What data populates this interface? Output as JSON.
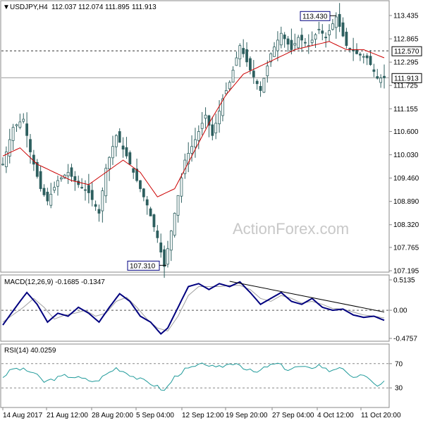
{
  "chart_data": {
    "type": "candlestick",
    "symbol_header": "USDJPY,H4",
    "ohlc_header": [
      "112.037",
      "112.074",
      "111.895",
      "111.913"
    ],
    "watermark": "ActionForex.com",
    "price_axis": {
      "ticks": [
        "113.435",
        "112.865",
        "112.295",
        "111.725",
        "111.155",
        "110.600",
        "110.030",
        "109.460",
        "108.890",
        "108.320",
        "107.765",
        "107.195"
      ],
      "ylim": [
        107.195,
        113.435
      ]
    },
    "x_labels": [
      "14 Aug 2017",
      "21 Aug 12:00",
      "28 Aug 20:00",
      "5 Sep 04:00",
      "12 Sep 12:00",
      "19 Sep 20:00",
      "27 Sep 04:00",
      "4 Oct 12:00",
      "11 Oct 20:00"
    ],
    "annotations": {
      "high_label": "113.430",
      "low_label": "107.310",
      "resistance_label": "112.570",
      "last_price_label": "111.913"
    },
    "price_path": [
      [
        0,
        109.8
      ],
      [
        3,
        110.7
      ],
      [
        6,
        110.9
      ],
      [
        8,
        110.1
      ],
      [
        11,
        109.2
      ],
      [
        13,
        108.9
      ],
      [
        16,
        109.4
      ],
      [
        19,
        109.6
      ],
      [
        22,
        109.3
      ],
      [
        25,
        109.1
      ],
      [
        28,
        108.6
      ],
      [
        30,
        109.7
      ],
      [
        33,
        110.5
      ],
      [
        36,
        110.0
      ],
      [
        39,
        109.4
      ],
      [
        42,
        108.8
      ],
      [
        45,
        108.0
      ],
      [
        47,
        107.3
      ],
      [
        50,
        108.6
      ],
      [
        53,
        109.9
      ],
      [
        56,
        110.4
      ],
      [
        59,
        111.0
      ],
      [
        61,
        110.5
      ],
      [
        64,
        111.4
      ],
      [
        66,
        111.8
      ],
      [
        69,
        112.7
      ],
      [
        72,
        112.1
      ],
      [
        75,
        111.6
      ],
      [
        78,
        112.5
      ],
      [
        81,
        113.0
      ],
      [
        84,
        112.6
      ],
      [
        86,
        112.9
      ],
      [
        89,
        112.7
      ],
      [
        92,
        113.1
      ],
      [
        94,
        112.9
      ],
      [
        97,
        113.4
      ],
      [
        100,
        112.7
      ],
      [
        103,
        112.5
      ],
      [
        106,
        112.4
      ],
      [
        109,
        111.9
      ],
      [
        111,
        111.913
      ]
    ],
    "ma_path": [
      [
        0,
        110.0
      ],
      [
        5,
        110.2
      ],
      [
        10,
        109.8
      ],
      [
        15,
        109.6
      ],
      [
        20,
        109.4
      ],
      [
        25,
        109.3
      ],
      [
        30,
        109.6
      ],
      [
        35,
        109.9
      ],
      [
        40,
        109.6
      ],
      [
        45,
        109.0
      ],
      [
        50,
        109.2
      ],
      [
        55,
        110.0
      ],
      [
        60,
        110.8
      ],
      [
        65,
        111.5
      ],
      [
        70,
        112.0
      ],
      [
        75,
        112.2
      ],
      [
        80,
        112.4
      ],
      [
        85,
        112.6
      ],
      [
        90,
        112.7
      ],
      [
        95,
        112.8
      ],
      [
        100,
        112.6
      ],
      [
        105,
        112.6
      ],
      [
        111,
        112.4
      ]
    ],
    "macd": {
      "label": "MACD(12,26,9) -0.1685 -0.1347",
      "ticks": [
        "0.5135",
        "0.00",
        "-0.4757"
      ],
      "ylim": [
        -0.4757,
        0.5135
      ],
      "main": [
        [
          0,
          -0.25
        ],
        [
          5,
          0.15
        ],
        [
          7,
          0.3
        ],
        [
          10,
          0.1
        ],
        [
          13,
          -0.2
        ],
        [
          16,
          -0.05
        ],
        [
          19,
          -0.1
        ],
        [
          22,
          0.05
        ],
        [
          25,
          -0.05
        ],
        [
          28,
          -0.2
        ],
        [
          31,
          0.05
        ],
        [
          34,
          0.28
        ],
        [
          37,
          0.15
        ],
        [
          40,
          -0.1
        ],
        [
          43,
          -0.2
        ],
        [
          46,
          -0.4
        ],
        [
          48,
          -0.3
        ],
        [
          51,
          0.05
        ],
        [
          54,
          0.4
        ],
        [
          57,
          0.45
        ],
        [
          60,
          0.35
        ],
        [
          63,
          0.45
        ],
        [
          66,
          0.4
        ],
        [
          69,
          0.48
        ],
        [
          72,
          0.3
        ],
        [
          75,
          0.1
        ],
        [
          78,
          0.2
        ],
        [
          81,
          0.3
        ],
        [
          84,
          0.15
        ],
        [
          87,
          0.1
        ],
        [
          90,
          0.2
        ],
        [
          93,
          0.05
        ],
        [
          96,
          0.0
        ],
        [
          99,
          0.02
        ],
        [
          102,
          -0.08
        ],
        [
          105,
          -0.12
        ],
        [
          108,
          -0.1
        ],
        [
          111,
          -0.17
        ]
      ],
      "signal": [
        [
          0,
          -0.2
        ],
        [
          6,
          0.05
        ],
        [
          9,
          0.2
        ],
        [
          12,
          0.05
        ],
        [
          15,
          -0.15
        ],
        [
          18,
          -0.08
        ],
        [
          21,
          -0.05
        ],
        [
          24,
          0.0
        ],
        [
          27,
          -0.1
        ],
        [
          30,
          -0.05
        ],
        [
          33,
          0.15
        ],
        [
          36,
          0.22
        ],
        [
          39,
          0.05
        ],
        [
          42,
          -0.15
        ],
        [
          45,
          -0.3
        ],
        [
          48,
          -0.35
        ],
        [
          51,
          -0.1
        ],
        [
          54,
          0.25
        ],
        [
          57,
          0.4
        ],
        [
          60,
          0.4
        ],
        [
          63,
          0.4
        ],
        [
          66,
          0.42
        ],
        [
          69,
          0.42
        ],
        [
          72,
          0.35
        ],
        [
          75,
          0.2
        ],
        [
          78,
          0.15
        ],
        [
          81,
          0.25
        ],
        [
          84,
          0.2
        ],
        [
          87,
          0.12
        ],
        [
          90,
          0.15
        ],
        [
          93,
          0.1
        ],
        [
          96,
          0.03
        ],
        [
          99,
          0.02
        ],
        [
          102,
          -0.03
        ],
        [
          105,
          -0.08
        ],
        [
          108,
          -0.1
        ],
        [
          111,
          -0.13
        ]
      ]
    },
    "rsi": {
      "label": "RSI(14) 40.0259",
      "ticks": [
        "70",
        "30"
      ],
      "ylim": [
        0,
        100
      ],
      "values": [
        [
          0,
          48
        ],
        [
          3,
          62
        ],
        [
          6,
          60
        ],
        [
          9,
          55
        ],
        [
          12,
          40
        ],
        [
          15,
          45
        ],
        [
          18,
          50
        ],
        [
          21,
          48
        ],
        [
          24,
          44
        ],
        [
          27,
          40
        ],
        [
          30,
          52
        ],
        [
          33,
          63
        ],
        [
          36,
          55
        ],
        [
          39,
          46
        ],
        [
          42,
          40
        ],
        [
          45,
          32
        ],
        [
          47,
          25
        ],
        [
          50,
          48
        ],
        [
          53,
          60
        ],
        [
          56,
          65
        ],
        [
          59,
          70
        ],
        [
          62,
          62
        ],
        [
          65,
          68
        ],
        [
          68,
          72
        ],
        [
          71,
          60
        ],
        [
          74,
          55
        ],
        [
          77,
          66
        ],
        [
          80,
          70
        ],
        [
          83,
          60
        ],
        [
          86,
          65
        ],
        [
          89,
          62
        ],
        [
          92,
          68
        ],
        [
          95,
          58
        ],
        [
          98,
          65
        ],
        [
          101,
          48
        ],
        [
          104,
          50
        ],
        [
          107,
          45
        ],
        [
          109,
          32
        ],
        [
          111,
          40
        ]
      ]
    },
    "colors": {
      "candles": "#2d5f5f",
      "ma": "#cc0000",
      "macd": "#00007f",
      "signal": "#a0a0a0",
      "rsi": "#1f9a9a",
      "trendline": "#000000"
    }
  }
}
